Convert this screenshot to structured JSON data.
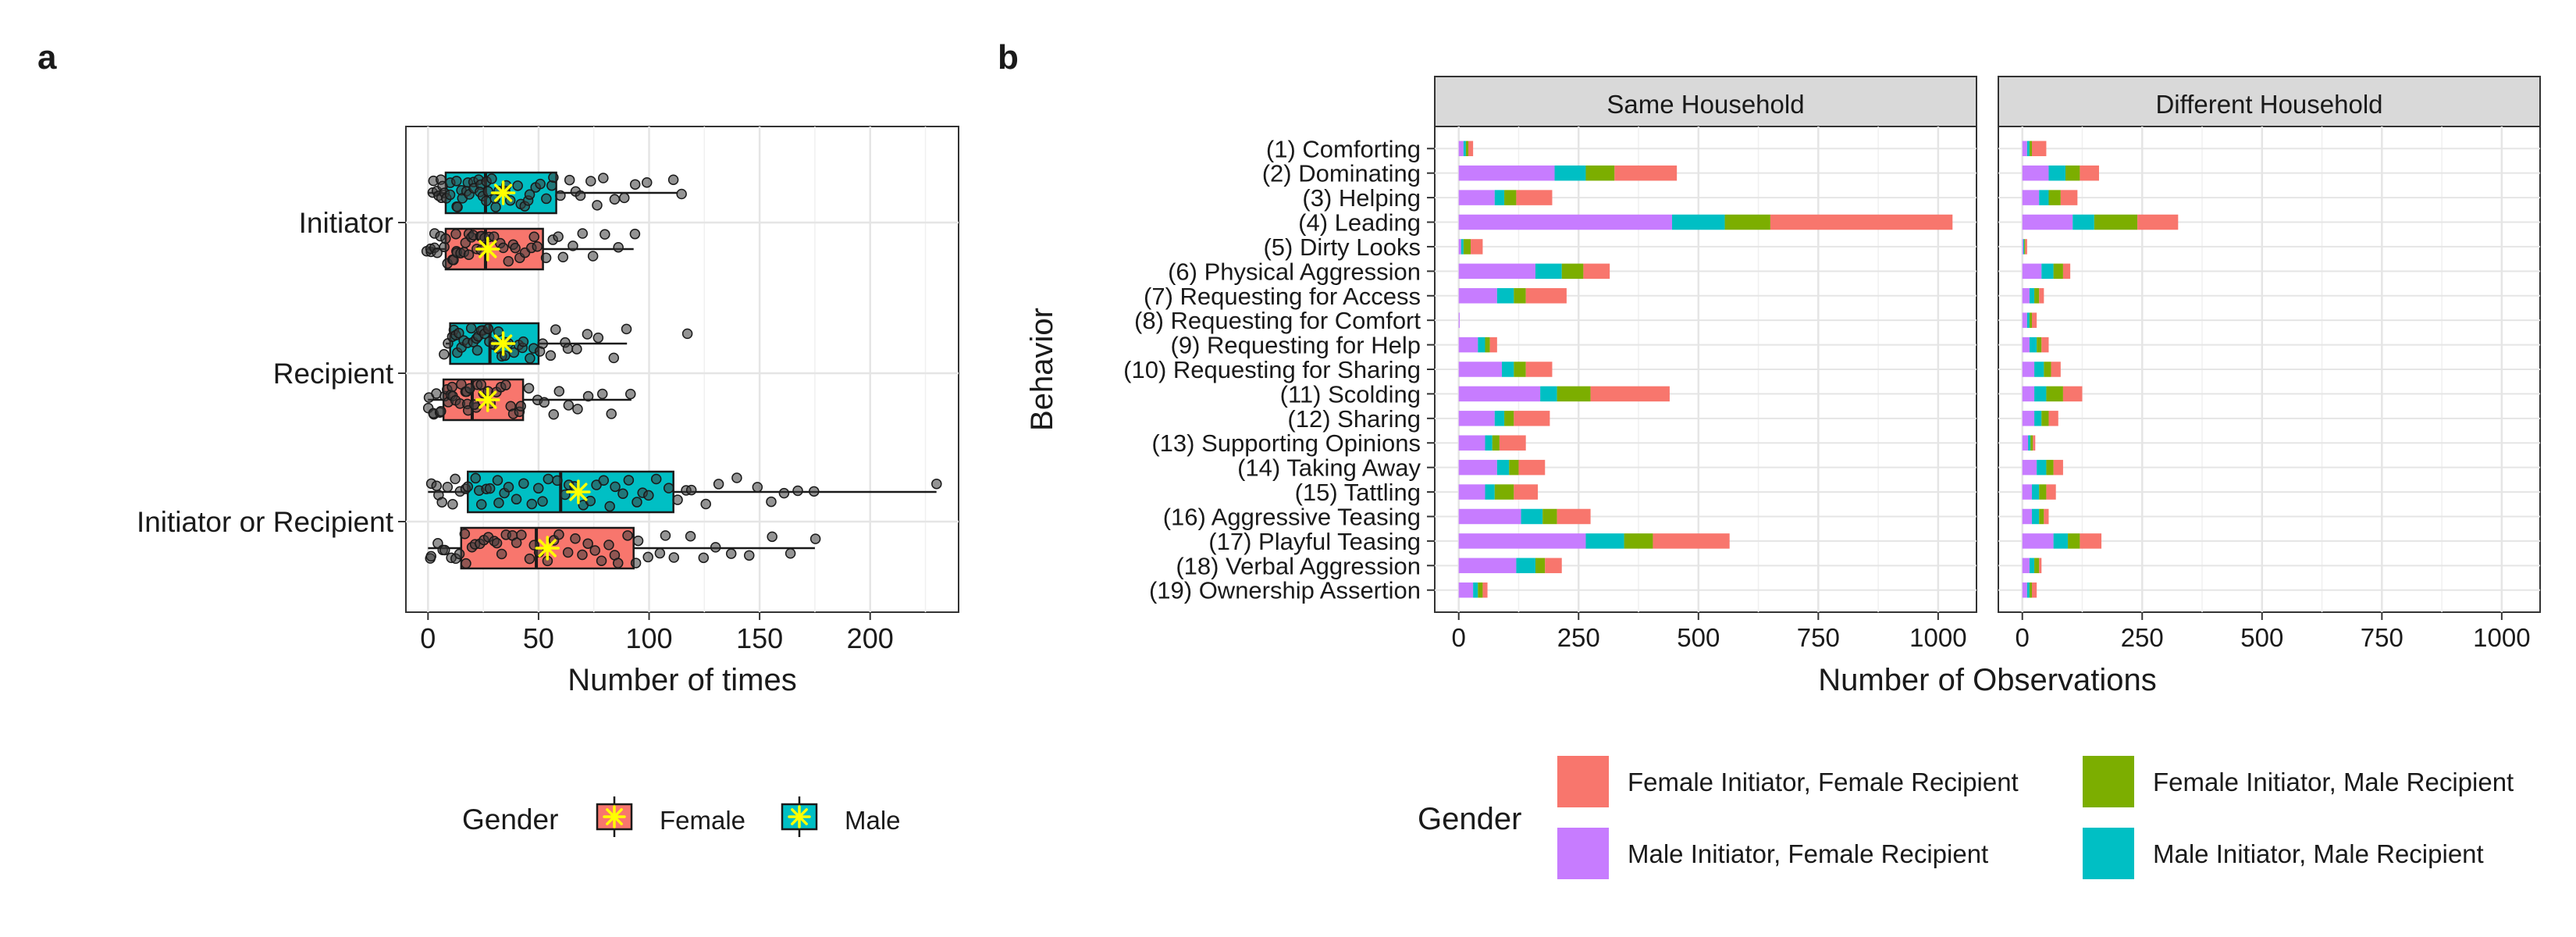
{
  "chart_data": [
    {
      "panel_label": "a",
      "type": "boxplot",
      "xlabel": "Number of times",
      "xlim": [
        -10,
        240
      ],
      "x_ticks": [
        0,
        50,
        100,
        150,
        200
      ],
      "categories": [
        "Initiator",
        "Recipient",
        "Initiator or Recipient"
      ],
      "series": [
        {
          "name": "Male",
          "color": "#00BFC4",
          "boxes": [
            {
              "category": "Initiator",
              "min": 0,
              "q1": 8,
              "median": 26,
              "q3": 58,
              "max": 113,
              "mean": 34
            },
            {
              "category": "Recipient",
              "min": 8,
              "q1": 10,
              "median": 28,
              "q3": 50,
              "max": 90,
              "mean": 34
            },
            {
              "category": "Initiator or Recipient",
              "min": 0,
              "q1": 18,
              "median": 60,
              "q3": 111,
              "max": 230,
              "mean": 68
            }
          ],
          "points": [
            [
              [
                2,
                3,
                4,
                5,
                5,
                6,
                7,
                8,
                9,
                10,
                11,
                12,
                13,
                14,
                15,
                16,
                17,
                18,
                19,
                20,
                21,
                22,
                23,
                24,
                25,
                26,
                27,
                28,
                29,
                30,
                31,
                32,
                34,
                35,
                36,
                38,
                40,
                41,
                43,
                45,
                47,
                49,
                51,
                53,
                55,
                57,
                60,
                63,
                66,
                69,
                73,
                77,
                80,
                84,
                88,
                93,
                100,
                112,
                114
              ]
            ],
            [
              [
                8,
                10,
                11,
                12,
                13,
                14,
                15,
                16,
                17,
                18,
                19,
                20,
                21,
                22,
                23,
                24,
                25,
                26,
                27,
                28,
                29,
                30,
                31,
                32,
                33,
                34,
                35,
                36,
                38,
                40,
                42,
                44,
                46,
                48,
                50,
                52,
                55,
                58,
                61,
                64,
                68,
                72,
                78,
                84,
                90,
                117
              ]
            ],
            [
              [
                1,
                3,
                5,
                7,
                9,
                11,
                13,
                15,
                17,
                19,
                21,
                23,
                25,
                27,
                29,
                31,
                33,
                35,
                37,
                40,
                43,
                46,
                49,
                52,
                55,
                58,
                61,
                64,
                67,
                70,
                73,
                76,
                79,
                82,
                85,
                88,
                91,
                94,
                97,
                100,
                104,
                108,
                112,
                116,
                120,
                126,
                132,
                140,
                148,
                155,
                162,
                168,
                175,
                230
              ]
            ]
          ]
        },
        {
          "name": "Female",
          "color": "#F8766D",
          "boxes": [
            {
              "category": "Initiator",
              "min": 0,
              "q1": 8,
              "median": 26,
              "q3": 52,
              "max": 93,
              "mean": 27
            },
            {
              "category": "Recipient",
              "min": 0,
              "q1": 7,
              "median": 20,
              "q3": 43,
              "max": 92,
              "mean": 27
            },
            {
              "category": "Initiator or Recipient",
              "min": 0,
              "q1": 15,
              "median": 49,
              "q3": 93,
              "max": 175,
              "mean": 54
            }
          ],
          "points": [
            [
              [
                0,
                1,
                2,
                3,
                4,
                5,
                6,
                7,
                8,
                9,
                10,
                11,
                12,
                13,
                14,
                15,
                16,
                17,
                18,
                19,
                20,
                21,
                22,
                23,
                24,
                25,
                26,
                28,
                30,
                32,
                34,
                36,
                38,
                40,
                42,
                44,
                46,
                48,
                50,
                53,
                56,
                59,
                62,
                66,
                70,
                75,
                80,
                86,
                93
              ]
            ],
            [
              [
                0,
                1,
                2,
                3,
                4,
                5,
                6,
                7,
                8,
                9,
                10,
                11,
                12,
                13,
                14,
                15,
                16,
                17,
                18,
                19,
                20,
                21,
                22,
                23,
                24,
                25,
                27,
                29,
                31,
                33,
                35,
                37,
                39,
                41,
                43,
                46,
                49,
                52,
                56,
                60,
                64,
                68,
                73,
                78,
                84,
                92
              ]
            ],
            [
              [
                0,
                2,
                4,
                6,
                8,
                10,
                12,
                14,
                16,
                18,
                20,
                22,
                24,
                26,
                28,
                30,
                32,
                34,
                36,
                38,
                40,
                42,
                45,
                48,
                51,
                54,
                57,
                60,
                63,
                66,
                69,
                72,
                75,
                78,
                81,
                84,
                87,
                90,
                93,
                96,
                100,
                104,
                108,
                112,
                118,
                124,
                130,
                138,
                146,
                155,
                165,
                175
              ]
            ]
          ]
        }
      ],
      "legend": {
        "title": "Gender",
        "entries": [
          "Female",
          "Male"
        ],
        "placement": "bottom"
      }
    },
    {
      "panel_label": "b",
      "type": "stacked-bar-horizontal",
      "facets": [
        "Same Household",
        "Different Household"
      ],
      "ylabel": "Behavior",
      "xlabel": "Number of Observations",
      "xlim": [
        -50,
        1080
      ],
      "x_ticks": [
        0,
        250,
        500,
        750,
        1000
      ],
      "categories": [
        "(1) Comforting",
        "(2) Dominating",
        "(3) Helping",
        "(4) Leading",
        "(5) Dirty Looks",
        "(6) Physical Aggression",
        "(7) Requesting for Access",
        "(8) Requesting for Comfort",
        "(9) Requesting for Help",
        "(10) Requesting for Sharing",
        "(11) Scolding",
        "(12) Sharing",
        "(13) Supporting Opinions",
        "(14) Taking Away",
        "(15) Tattling",
        "(16) Aggressive Teasing",
        "(17) Playful Teasing",
        "(18) Verbal Aggression",
        "(19) Ownership Assertion"
      ],
      "series": [
        {
          "name": "Male Initiator, Female Recipient",
          "color": "#C77CFF",
          "values": {
            "Same Household": [
              10,
              200,
              75,
              445,
              5,
              160,
              80,
              2,
              40,
              90,
              170,
              75,
              55,
              80,
              55,
              130,
              265,
              120,
              30
            ],
            "Different Household": [
              10,
              55,
              35,
              105,
              2,
              40,
              15,
              10,
              15,
              25,
              25,
              25,
              12,
              30,
              20,
              20,
              65,
              15,
              10
            ]
          }
        },
        {
          "name": "Male Initiator, Male Recipient",
          "color": "#00BFC4",
          "values": {
            "Same Household": [
              5,
              65,
              20,
              110,
              5,
              55,
              35,
              0,
              15,
              25,
              35,
              20,
              15,
              25,
              20,
              45,
              80,
              40,
              10
            ],
            "Different Household": [
              5,
              35,
              20,
              45,
              2,
              25,
              10,
              5,
              15,
              20,
              25,
              15,
              5,
              20,
              15,
              15,
              30,
              10,
              5
            ]
          }
        },
        {
          "name": "Female Initiator, Male Recipient",
          "color": "#7CAE00",
          "values": {
            "Same Household": [
              5,
              60,
              25,
              95,
              15,
              45,
              25,
              0,
              10,
              25,
              70,
              20,
              15,
              20,
              40,
              30,
              60,
              20,
              10
            ],
            "Different Household": [
              5,
              30,
              25,
              90,
              2,
              20,
              10,
              5,
              10,
              15,
              35,
              15,
              5,
              15,
              15,
              10,
              25,
              10,
              5
            ]
          }
        },
        {
          "name": "Female Initiator, Female Recipient",
          "color": "#F8766D",
          "values": {
            "Same Household": [
              10,
              130,
              75,
              380,
              25,
              55,
              85,
              0,
              15,
              55,
              165,
              75,
              55,
              55,
              50,
              70,
              160,
              35,
              10
            ],
            "Different Household": [
              30,
              40,
              35,
              85,
              4,
              15,
              10,
              10,
              15,
              20,
              40,
              20,
              5,
              20,
              20,
              10,
              45,
              5,
              10
            ]
          }
        }
      ],
      "legend": {
        "title": "Gender",
        "placement": "bottom",
        "entries": [
          "Female Initiator, Female Recipient",
          "Male Initiator, Female Recipient",
          "Female Initiator, Male Recipient",
          "Male Initiator, Male Recipient"
        ]
      }
    }
  ]
}
